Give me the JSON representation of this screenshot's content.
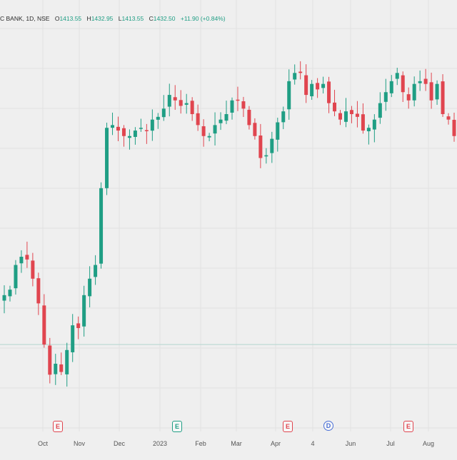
{
  "legend": {
    "symbol": "C BANK, 1D, NSE",
    "open_label": "O",
    "open": "1413.55",
    "high_label": "H",
    "high": "1432.95",
    "low_label": "L",
    "low": "1413.55",
    "close_label": "C",
    "close": "1432.50",
    "change": "+11.90 (+0.84%)"
  },
  "colors": {
    "up": "#1f9e84",
    "down": "#e0454f",
    "grid": "#e2e2e2",
    "background": "#efefef",
    "baseline": "#b9d8d2"
  },
  "x_labels": [
    {
      "text": "Oct",
      "bold": false
    },
    {
      "text": "Nov",
      "bold": false
    },
    {
      "text": "Dec",
      "bold": false
    },
    {
      "text": "2023",
      "bold": true
    },
    {
      "text": "Feb",
      "bold": false
    },
    {
      "text": "Mar",
      "bold": false
    },
    {
      "text": "Apr",
      "bold": false
    },
    {
      "text": "4",
      "bold": false
    },
    {
      "text": "Jun",
      "bold": false
    },
    {
      "text": "Jul",
      "bold": false
    },
    {
      "text": "Aug",
      "bold": false
    }
  ],
  "events": [
    {
      "letter": "E",
      "color": "#e0454f",
      "shape": "flag"
    },
    {
      "letter": "E",
      "color": "#1f9e84",
      "shape": "flag"
    },
    {
      "letter": "E",
      "color": "#e0454f",
      "shape": "flag"
    },
    {
      "letter": "D",
      "color": "#4a6fd6",
      "shape": "round"
    },
    {
      "letter": "E",
      "color": "#e0454f",
      "shape": "flag"
    }
  ],
  "chart_data": {
    "type": "candlestick",
    "title": "C BANK, 1D, NSE",
    "x_ticks": [
      "Oct",
      "Nov",
      "Dec",
      "2023",
      "Feb",
      "Mar",
      "Apr",
      "4",
      "Jun",
      "Jul",
      "Aug"
    ],
    "series": [
      {
        "approx_close": [
          1398,
          1400,
          1409,
          1412,
          1411,
          1404,
          1395,
          1380,
          1369,
          1373,
          1370,
          1378,
          1387,
          1386,
          1398,
          1404,
          1409,
          1437,
          1459,
          1460,
          1458,
          1456,
          1456,
          1458,
          1459,
          1458,
          1462,
          1463,
          1466,
          1471,
          1469,
          1467,
          1468,
          1464,
          1460,
          1456,
          1456,
          1460,
          1462,
          1464,
          1469,
          1469,
          1466,
          1460,
          1456,
          1448,
          1449,
          1455,
          1461,
          1465,
          1476,
          1479,
          1479,
          1471,
          1475,
          1473,
          1475,
          1468,
          1465,
          1462,
          1465,
          1464,
          1463,
          1458,
          1459,
          1462,
          1468,
          1472,
          1476,
          1479,
          1472,
          1469,
          1475,
          1476,
          1475,
          1469,
          1475,
          1464,
          1462,
          1456
        ]
      }
    ],
    "last_close": 1432.5,
    "baseline_level": 1380,
    "grid": true
  }
}
